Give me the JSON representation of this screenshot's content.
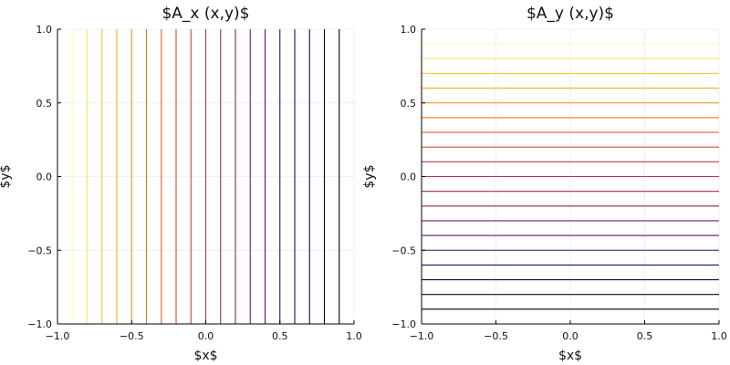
{
  "chart_data": [
    {
      "type": "line",
      "title": "$A_x (x,y)$",
      "xlabel": "$x$",
      "ylabel": "$y$",
      "xlim": [
        -1.0,
        1.0
      ],
      "ylim": [
        -1.0,
        1.0
      ],
      "xticks": [
        "−1.0",
        "−0.5",
        "0.0",
        "0.5",
        "1.0"
      ],
      "yticks": [
        "−1.0",
        "−0.5",
        "0.0",
        "0.5",
        "1.0"
      ],
      "grid": true,
      "legend": "none",
      "contour_orientation": "vertical",
      "levels": [
        -0.9,
        -0.8,
        -0.7,
        -0.6,
        -0.5,
        -0.4,
        -0.3,
        -0.2,
        -0.1,
        0.0,
        0.1,
        0.2,
        0.3,
        0.4,
        0.5,
        0.6,
        0.7,
        0.8,
        0.9
      ],
      "colormap": "inferno (light yellow at -1 to black at 1)"
    },
    {
      "type": "line",
      "title": "$A_y (x,y)$",
      "xlabel": "$x$",
      "ylabel": "$y$",
      "xlim": [
        -1.0,
        1.0
      ],
      "ylim": [
        -1.0,
        1.0
      ],
      "xticks": [
        "−1.0",
        "−0.5",
        "0.0",
        "0.5",
        "1.0"
      ],
      "yticks": [
        "−1.0",
        "−0.5",
        "0.0",
        "0.5",
        "1.0"
      ],
      "grid": true,
      "legend": "none",
      "contour_orientation": "horizontal",
      "levels": [
        -0.9,
        -0.8,
        -0.7,
        -0.6,
        -0.5,
        -0.4,
        -0.3,
        -0.2,
        -0.1,
        0.0,
        0.1,
        0.2,
        0.3,
        0.4,
        0.5,
        0.6,
        0.7,
        0.8,
        0.9
      ],
      "colormap": "inferno (black at -1 to light yellow at 1)"
    }
  ]
}
